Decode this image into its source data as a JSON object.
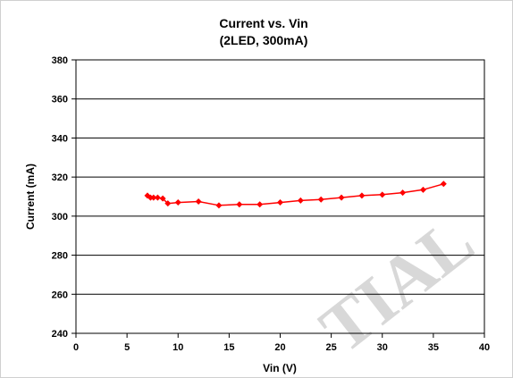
{
  "chart_data": {
    "type": "line",
    "title": "Current vs. Vin",
    "subtitle": "(2LED, 300mA)",
    "xlabel": "Vin (V)",
    "ylabel": "Current (mA)",
    "xlim": [
      0,
      40
    ],
    "ylim": [
      240,
      380
    ],
    "xticks": [
      0,
      5,
      10,
      15,
      20,
      25,
      30,
      35,
      40
    ],
    "yticks": [
      240,
      260,
      280,
      300,
      320,
      340,
      360,
      380
    ],
    "grid": "horizontal",
    "legend": "none",
    "series": [
      {
        "color": "#ff0000",
        "marker": "diamond",
        "x": [
          7.0,
          7.3,
          7.6,
          8.0,
          8.5,
          9.0,
          10.0,
          12.0,
          14.0,
          16.0,
          18.0,
          20.0,
          22.0,
          24.0,
          26.0,
          28.0,
          30.0,
          32.0,
          34.0,
          36.0
        ],
        "y": [
          310.5,
          309.5,
          309.5,
          309.5,
          309.0,
          306.5,
          307.0,
          307.5,
          305.5,
          306.0,
          306.0,
          307.0,
          308.0,
          308.5,
          309.5,
          310.5,
          311.0,
          312.0,
          313.5,
          316.5
        ]
      }
    ]
  },
  "watermark": "TIAL"
}
